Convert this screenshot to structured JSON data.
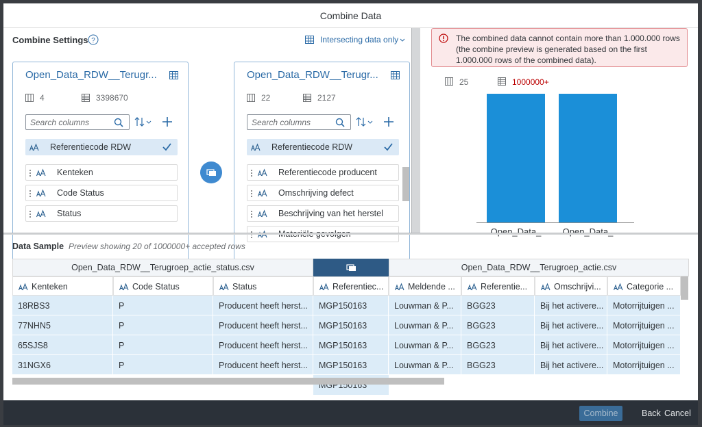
{
  "header": {
    "title": "Combine Data"
  },
  "settings": {
    "title": "Combine Settings",
    "mode": "Intersecting data only"
  },
  "datasets": [
    {
      "title": "Open_Data_RDW__Terugr...",
      "column_count": 4,
      "row_count": 3398670,
      "search_placeholder": "Search columns",
      "key_column": "Referentiecode RDW",
      "columns": [
        "Kenteken",
        "Code Status",
        "Status"
      ]
    },
    {
      "title": "Open_Data_RDW__Terugr...",
      "column_count": 22,
      "row_count": 2127,
      "search_placeholder": "Search columns",
      "key_column": "Referentiecode RDW",
      "columns": [
        "Referentiecode producent",
        "Omschrijving defect",
        "Beschrijving van het herstel",
        "Materiële gevolgen"
      ]
    }
  ],
  "error": {
    "message": "The combined data cannot contain more than 1.000.000 rows (the combine preview is generated based on the first 1.000.000 rows of the combined data)."
  },
  "preview": {
    "column_count": 25,
    "row_count": "1000000+",
    "bar_labels": [
      "Open_Data_",
      "Open_Data_"
    ]
  },
  "sample": {
    "title": "Data Sample",
    "subtitle": "Preview showing 20 of 1000000+ accepted rows",
    "groups": [
      "Open_Data_RDW__Terugroep_actie_status.csv",
      "Open_Data_RDW__Terugroep_actie.csv"
    ],
    "columns": [
      "Kenteken",
      "Code Status",
      "Status",
      "Referentiec...",
      "Meldende ...",
      "Referentie...",
      "Omschrijvi...",
      "Categorie ..."
    ],
    "rows": [
      [
        "18RBS3",
        "P",
        "Producent heeft herst...",
        "MGP150163",
        "Louwman & P...",
        "BGG23",
        "Bij het activere...",
        "Motorrijtuigen ..."
      ],
      [
        "77NHN5",
        "P",
        "Producent heeft herst...",
        "MGP150163",
        "Louwman & P...",
        "BGG23",
        "Bij het activere...",
        "Motorrijtuigen ..."
      ],
      [
        "65SJS8",
        "P",
        "Producent heeft herst...",
        "MGP150163",
        "Louwman & P...",
        "BGG23",
        "Bij het activere...",
        "Motorrijtuigen ..."
      ],
      [
        "31NGX6",
        "P",
        "Producent heeft herst...",
        "MGP150163",
        "Louwman & P...",
        "BGG23",
        "Bij het activere...",
        "Motorrijtuigen ..."
      ]
    ],
    "partial_row_cell": "MGP150163"
  },
  "footer": {
    "buttons": [
      "Combine",
      "Back",
      "Cancel"
    ]
  }
}
